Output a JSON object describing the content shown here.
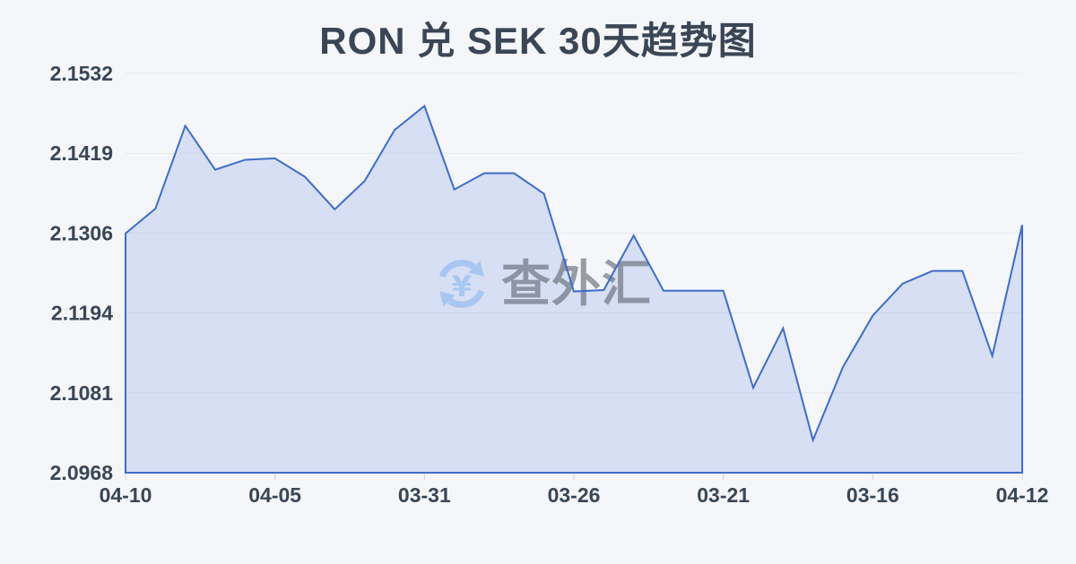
{
  "header": {
    "title": "RON 兑 SEK 30天趋势图"
  },
  "watermark": {
    "brand_text": "查外汇",
    "currency_symbol": "¥",
    "icon": "currency-refresh-icon",
    "icon_color": "#a9c6f3",
    "text_color": "#9aa0a8"
  },
  "colors": {
    "background": "#f4f6f9",
    "title_text": "#3a4656",
    "axis_label_text": "#3a4656",
    "gridline": "#e7e9ee",
    "tick_mark": "#cfd3d9",
    "series_line": "#3f6cc9",
    "series_fill": "rgba(76,121,214,0.18)"
  },
  "chart_data": {
    "type": "area",
    "title": "RON 兑 SEK 30天趋势图",
    "series_name": "RON/SEK",
    "xlabel": "",
    "ylabel": "",
    "grid": true,
    "legend_position": "none",
    "markers": false,
    "ylim": [
      2.0968,
      2.1532
    ],
    "y_tick_labels": [
      "2.1532",
      "2.1419",
      "2.1306",
      "2.1194",
      "2.1081",
      "2.0968"
    ],
    "x_tick_labels": [
      "04-10",
      "04-05",
      "03-31",
      "03-26",
      "03-21",
      "03-16",
      "04-12"
    ],
    "x_tick_indices": [
      0,
      5,
      10,
      15,
      20,
      25,
      30
    ],
    "values": [
      2.1306,
      2.1341,
      2.1458,
      2.1396,
      2.141,
      2.1412,
      2.1386,
      2.134,
      2.138,
      2.1452,
      2.1486,
      2.1368,
      2.1391,
      2.1391,
      2.1362,
      2.1224,
      2.1226,
      2.1303,
      2.1225,
      2.1225,
      2.1225,
      2.1088,
      2.1172,
      2.1014,
      2.1117,
      2.119,
      2.1235,
      2.1253,
      2.1253,
      2.1133,
      2.1318
    ]
  }
}
